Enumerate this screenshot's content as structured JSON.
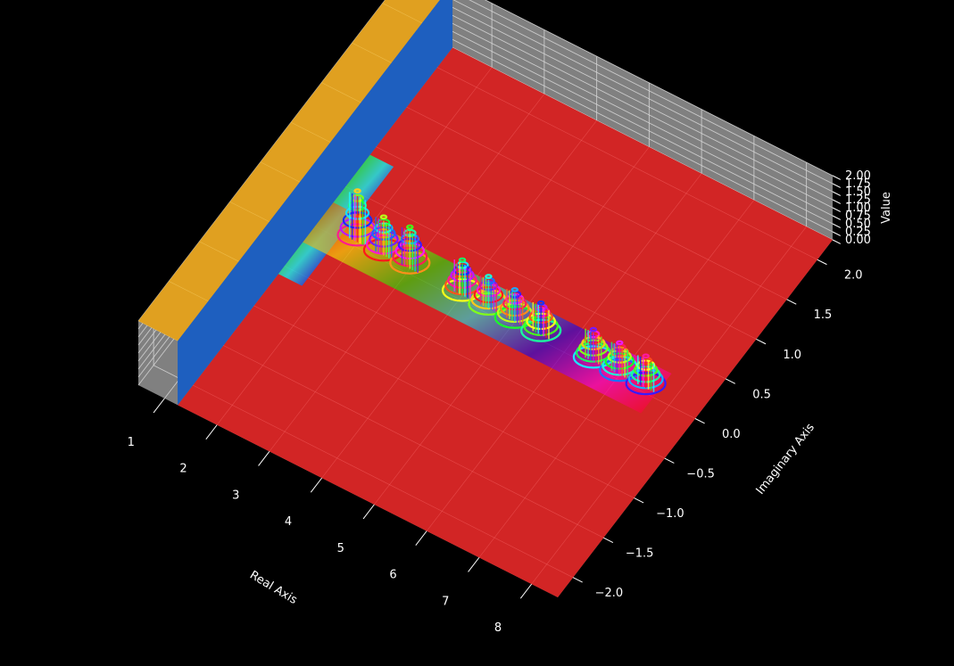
{
  "chart_data": {
    "type": "surface-3d",
    "title": "",
    "xlabel": "Real Axis",
    "ylabel": "Imaginary Axis",
    "zlabel": "Value",
    "xlim": [
      0.5,
      8.5
    ],
    "ylim": [
      -2.25,
      2.25
    ],
    "zlim": [
      0,
      2
    ],
    "x_ticks": [
      "1",
      "2",
      "3",
      "4",
      "5",
      "6",
      "7",
      "8"
    ],
    "y_ticks": [
      "−2.0",
      "−1.5",
      "−1.0",
      "−0.5",
      "0.0",
      "0.5",
      "1.0",
      "1.5",
      "2.0"
    ],
    "z_ticks": [
      "0.00",
      "0.25",
      "0.50",
      "0.75",
      "1.00",
      "1.25",
      "1.50",
      "1.75",
      "2.00"
    ],
    "grid": true,
    "background": "#000000",
    "pane_color": "#808080",
    "surface_colors": {
      "base": "#d62020",
      "wall": "#1e5fbf",
      "top": "#e0a020"
    },
    "regions": [
      {
        "name": "",
        "x_range": [
          0.5,
          1.25
        ],
        "y_range": [
          -2.25,
          2.25
        ],
        "value": 2.0
      },
      {
        "name": "",
        "x_range": [
          1.25,
          8.5
        ],
        "y_range": [
          -2.25,
          2.25
        ],
        "value": 0.0
      }
    ],
    "peaks": [
      {
        "x": 2.0,
        "y": 0.05,
        "height": 1.6
      },
      {
        "x": 2.5,
        "y": 0.05,
        "height": 1.2
      },
      {
        "x": 3.0,
        "y": 0.05,
        "height": 1.3
      },
      {
        "x": 4.0,
        "y": 0.05,
        "height": 1.1
      },
      {
        "x": 4.5,
        "y": 0.05,
        "height": 1.0
      },
      {
        "x": 5.0,
        "y": 0.05,
        "height": 1.0
      },
      {
        "x": 5.5,
        "y": 0.05,
        "height": 1.0
      },
      {
        "x": 6.5,
        "y": 0.05,
        "height": 1.0
      },
      {
        "x": 7.0,
        "y": 0.05,
        "height": 1.0
      },
      {
        "x": 7.5,
        "y": 0.05,
        "height": 1.0
      }
    ]
  }
}
